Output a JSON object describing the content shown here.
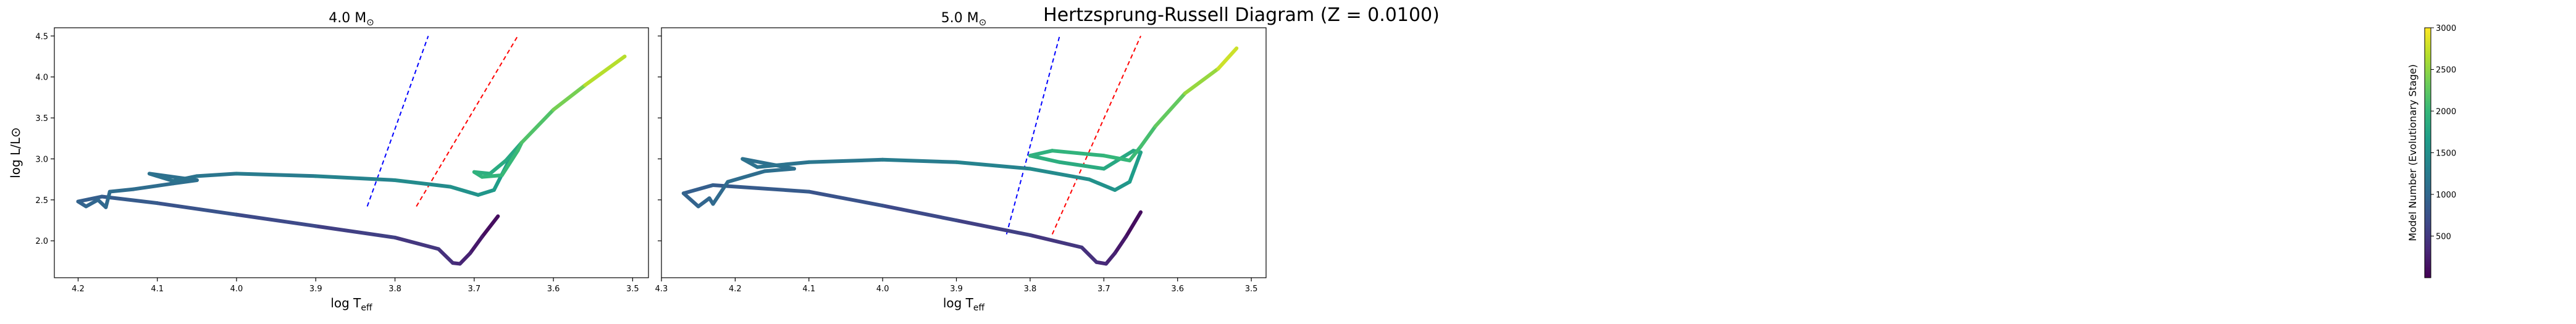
{
  "suptitle": "Hertzsprung-Russell Diagram (Z = 0.0100)",
  "colorbar": {
    "label": "Model Number (Evolutionary Stage)",
    "range": [
      0,
      3000
    ],
    "ticks": [
      500,
      1000,
      1500,
      2000,
      2500,
      3000
    ],
    "colormap": "viridis"
  },
  "chart_data": [
    {
      "type": "line",
      "title_base": "4.0 M",
      "title_sub": "⊙",
      "xlabel_base": "log T",
      "xlabel_sub": "eff",
      "ylabel": "log L/L⊙",
      "x_inverted": true,
      "xlim": [
        4.23,
        3.48
      ],
      "ylim": [
        1.55,
        4.6
      ],
      "xticks": [
        4.2,
        4.1,
        4.0,
        3.9,
        3.8,
        3.7,
        3.6,
        3.5
      ],
      "xtick_labels": [
        "4.2",
        "4.1",
        "4.0",
        "3.9",
        "3.8",
        "3.7",
        "3.6",
        "3.5"
      ],
      "yticks": [
        2.0,
        2.5,
        3.0,
        3.5,
        4.0,
        4.5
      ],
      "ytick_labels": [
        "2.0",
        "2.5",
        "3.0",
        "3.5",
        "4.0",
        "4.5"
      ],
      "instability_strip": [
        {
          "color": "#0000ff",
          "x": [
            3.835,
            3.758
          ],
          "y": [
            2.42,
            4.5
          ]
        },
        {
          "color": "#ff0000",
          "x": [
            3.773,
            3.645
          ],
          "y": [
            2.42,
            4.5
          ]
        }
      ],
      "track": [
        {
          "logT": 3.67,
          "logL": 2.3,
          "model": 50
        },
        {
          "logT": 3.69,
          "logL": 2.05,
          "model": 150
        },
        {
          "logT": 3.705,
          "logL": 1.85,
          "model": 250
        },
        {
          "logT": 3.718,
          "logL": 1.72,
          "model": 330
        },
        {
          "logT": 3.727,
          "logL": 1.73,
          "model": 380
        },
        {
          "logT": 3.745,
          "logL": 1.9,
          "model": 440
        },
        {
          "logT": 3.8,
          "logL": 2.04,
          "model": 520
        },
        {
          "logT": 3.9,
          "logL": 2.18,
          "model": 620
        },
        {
          "logT": 4.0,
          "logL": 2.32,
          "model": 720
        },
        {
          "logT": 4.1,
          "logL": 2.46,
          "model": 820
        },
        {
          "logT": 4.17,
          "logL": 2.54,
          "model": 880
        },
        {
          "logT": 4.2,
          "logL": 2.48,
          "model": 930
        },
        {
          "logT": 4.19,
          "logL": 2.42,
          "model": 960
        },
        {
          "logT": 4.175,
          "logL": 2.5,
          "model": 990
        },
        {
          "logT": 4.165,
          "logL": 2.41,
          "model": 1010
        },
        {
          "logT": 4.16,
          "logL": 2.6,
          "model": 1030
        },
        {
          "logT": 4.13,
          "logL": 2.63,
          "model": 1060
        },
        {
          "logT": 4.08,
          "logL": 2.7,
          "model": 1080
        },
        {
          "logT": 4.05,
          "logL": 2.74,
          "model": 1100
        },
        {
          "logT": 4.11,
          "logL": 2.82,
          "model": 1115
        },
        {
          "logT": 4.08,
          "logL": 2.73,
          "model": 1130
        },
        {
          "logT": 4.05,
          "logL": 2.79,
          "model": 1150
        },
        {
          "logT": 4.0,
          "logL": 2.82,
          "model": 1200
        },
        {
          "logT": 3.9,
          "logL": 2.79,
          "model": 1300
        },
        {
          "logT": 3.8,
          "logL": 2.74,
          "model": 1400
        },
        {
          "logT": 3.73,
          "logL": 2.66,
          "model": 1480
        },
        {
          "logT": 3.695,
          "logL": 2.56,
          "model": 1540
        },
        {
          "logT": 3.675,
          "logL": 2.62,
          "model": 1600
        },
        {
          "logT": 3.655,
          "logL": 3.0,
          "model": 1700
        },
        {
          "logT": 3.64,
          "logL": 3.2,
          "model": 1780
        },
        {
          "logT": 3.66,
          "logL": 2.98,
          "model": 1820
        },
        {
          "logT": 3.68,
          "logL": 2.82,
          "model": 1860
        },
        {
          "logT": 3.7,
          "logL": 2.84,
          "model": 1900
        },
        {
          "logT": 3.69,
          "logL": 2.78,
          "model": 1940
        },
        {
          "logT": 3.665,
          "logL": 2.8,
          "model": 1980
        },
        {
          "logT": 3.645,
          "logL": 3.1,
          "model": 2040
        },
        {
          "logT": 3.64,
          "logL": 3.2,
          "model": 2080
        },
        {
          "logT": 3.6,
          "logL": 3.6,
          "model": 2250
        },
        {
          "logT": 3.56,
          "logL": 3.9,
          "model": 2500
        },
        {
          "logT": 3.51,
          "logL": 4.25,
          "model": 2850
        }
      ]
    },
    {
      "type": "line",
      "title_base": "5.0 M",
      "title_sub": "⊙",
      "xlabel_base": "log T",
      "xlabel_sub": "eff",
      "ylabel": "",
      "x_inverted": true,
      "xlim": [
        4.3,
        3.48
      ],
      "ylim": [
        1.55,
        4.6
      ],
      "xticks": [
        4.3,
        4.2,
        4.1,
        4.0,
        3.9,
        3.8,
        3.7,
        3.6,
        3.5
      ],
      "xtick_labels": [
        "4.3",
        "4.2",
        "4.1",
        "4.0",
        "3.9",
        "3.8",
        "3.7",
        "3.6",
        "3.5"
      ],
      "yticks": [
        2.0,
        2.5,
        3.0,
        3.5,
        4.0,
        4.5
      ],
      "ytick_labels": [],
      "instability_strip": [
        {
          "color": "#0000ff",
          "x": [
            3.832,
            3.76
          ],
          "y": [
            2.08,
            4.5
          ]
        },
        {
          "color": "#ff0000",
          "x": [
            3.77,
            3.65
          ],
          "y": [
            2.08,
            4.5
          ]
        }
      ],
      "track": [
        {
          "logT": 3.65,
          "logL": 2.35,
          "model": 50
        },
        {
          "logT": 3.67,
          "logL": 2.05,
          "model": 150
        },
        {
          "logT": 3.685,
          "logL": 1.85,
          "model": 250
        },
        {
          "logT": 3.697,
          "logL": 1.72,
          "model": 330
        },
        {
          "logT": 3.71,
          "logL": 1.74,
          "model": 380
        },
        {
          "logT": 3.73,
          "logL": 1.92,
          "model": 440
        },
        {
          "logT": 3.8,
          "logL": 2.07,
          "model": 520
        },
        {
          "logT": 3.9,
          "logL": 2.25,
          "model": 620
        },
        {
          "logT": 4.0,
          "logL": 2.43,
          "model": 720
        },
        {
          "logT": 4.1,
          "logL": 2.6,
          "model": 820
        },
        {
          "logT": 4.23,
          "logL": 2.68,
          "model": 880
        },
        {
          "logT": 4.27,
          "logL": 2.58,
          "model": 920
        },
        {
          "logT": 4.25,
          "logL": 2.42,
          "model": 960
        },
        {
          "logT": 4.235,
          "logL": 2.52,
          "model": 990
        },
        {
          "logT": 4.23,
          "logL": 2.45,
          "model": 1010
        },
        {
          "logT": 4.21,
          "logL": 2.72,
          "model": 1040
        },
        {
          "logT": 4.16,
          "logL": 2.85,
          "model": 1080
        },
        {
          "logT": 4.12,
          "logL": 2.88,
          "model": 1100
        },
        {
          "logT": 4.19,
          "logL": 3.0,
          "model": 1115
        },
        {
          "logT": 4.17,
          "logL": 2.9,
          "model": 1130
        },
        {
          "logT": 4.1,
          "logL": 2.96,
          "model": 1160
        },
        {
          "logT": 4.0,
          "logL": 2.99,
          "model": 1220
        },
        {
          "logT": 3.9,
          "logL": 2.96,
          "model": 1300
        },
        {
          "logT": 3.8,
          "logL": 2.88,
          "model": 1400
        },
        {
          "logT": 3.72,
          "logL": 2.75,
          "model": 1480
        },
        {
          "logT": 3.685,
          "logL": 2.62,
          "model": 1540
        },
        {
          "logT": 3.665,
          "logL": 2.72,
          "model": 1600
        },
        {
          "logT": 3.65,
          "logL": 3.08,
          "model": 1720
        },
        {
          "logT": 3.66,
          "logL": 3.1,
          "model": 1780
        },
        {
          "logT": 3.7,
          "logL": 2.88,
          "model": 1830
        },
        {
          "logT": 3.76,
          "logL": 2.96,
          "model": 1860
        },
        {
          "logT": 3.8,
          "logL": 3.04,
          "model": 1890
        },
        {
          "logT": 3.77,
          "logL": 3.1,
          "model": 1920
        },
        {
          "logT": 3.7,
          "logL": 3.04,
          "model": 1960
        },
        {
          "logT": 3.665,
          "logL": 2.98,
          "model": 2000
        },
        {
          "logT": 3.65,
          "logL": 3.15,
          "model": 2060
        },
        {
          "logT": 3.63,
          "logL": 3.4,
          "model": 2150
        },
        {
          "logT": 3.59,
          "logL": 3.8,
          "model": 2400
        },
        {
          "logT": 3.545,
          "logL": 4.1,
          "model": 2650
        },
        {
          "logT": 3.52,
          "logL": 4.35,
          "model": 2900
        }
      ]
    }
  ]
}
